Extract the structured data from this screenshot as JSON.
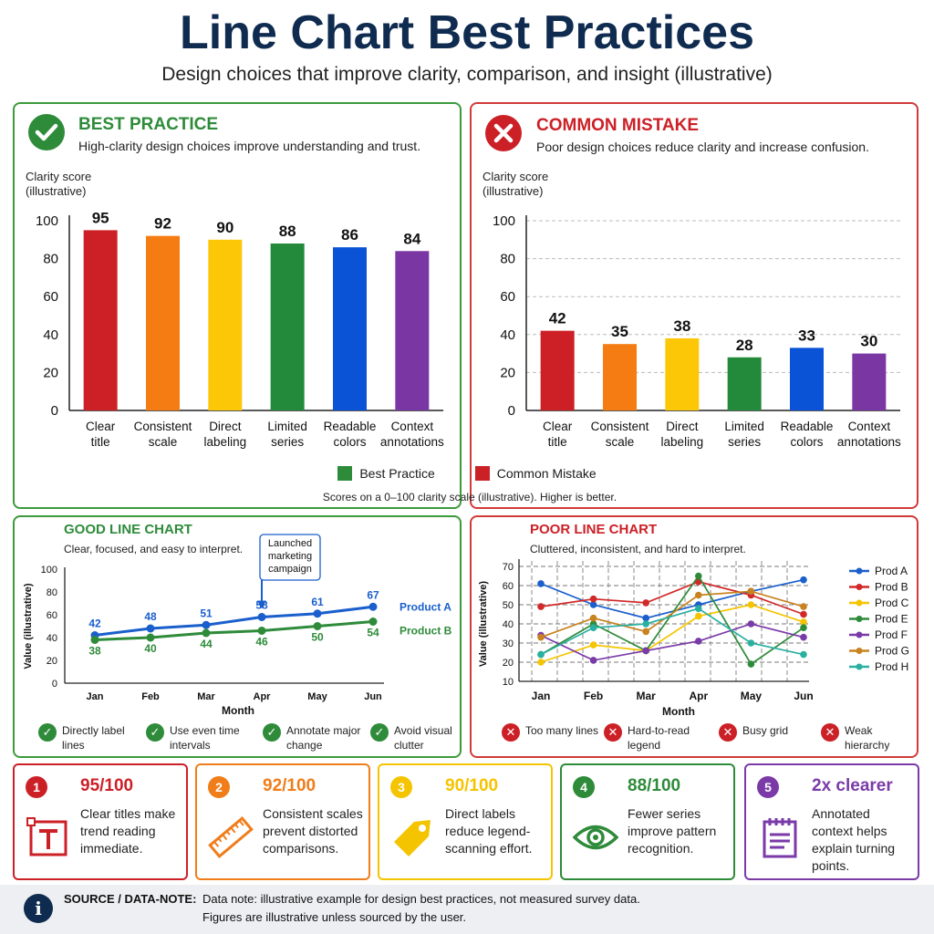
{
  "header": {
    "title": "Line Chart Best Practices",
    "subtitle": "Design choices that improve clarity, comparison, and insight (illustrative)"
  },
  "best_panel": {
    "title": "BEST PRACTICE",
    "subtitle": "High-clarity design choices improve understanding and trust."
  },
  "mistake_panel": {
    "title": "COMMON MISTAKE",
    "subtitle": "Poor design choices reduce clarity and increase confusion."
  },
  "bar_legend": {
    "best": "Best Practice",
    "mistake": "Common Mistake"
  },
  "bar_footnote": "Scores on a 0–100 clarity scale (illustrative). Higher is better.",
  "good_panel": {
    "title": "GOOD LINE CHART",
    "subtitle": "Clear, focused, and easy to interpret.",
    "tips": [
      "Directly label lines",
      "Use even time intervals",
      "Annotate major change",
      "Avoid visual clutter"
    ]
  },
  "poor_panel": {
    "title": "POOR LINE CHART",
    "subtitle": "Cluttered, inconsistent, and hard to interpret.",
    "tips": [
      "Too many lines",
      "Hard-to-read legend",
      "Busy grid",
      "Weak hierarchy"
    ]
  },
  "cards": [
    {
      "num": "1",
      "score": "95/100",
      "text": "Clear titles make trend reading immediate.",
      "color": "#cc2027",
      "icon": "title-icon"
    },
    {
      "num": "2",
      "score": "92/100",
      "text": "Consistent scales prevent distorted comparisons.",
      "color": "#f07d1a",
      "icon": "ruler-icon"
    },
    {
      "num": "3",
      "score": "90/100",
      "text": "Direct labels reduce legend-scanning effort.",
      "color": "#f5c400",
      "icon": "tag-icon"
    },
    {
      "num": "4",
      "score": "88/100",
      "text": "Fewer series improve pattern recognition.",
      "color": "#2e8b3a",
      "icon": "eye-icon"
    },
    {
      "num": "5",
      "score": "2x clearer",
      "text": "Annotated context helps explain turning points.",
      "color": "#7a3aa8",
      "icon": "notepad-icon"
    }
  ],
  "footer": {
    "label": "SOURCE / DATA-NOTE:",
    "note1": "Data note: illustrative example for design best practices, not measured survey data.",
    "note2": "Figures are illustrative unless sourced by the user."
  },
  "colors": {
    "navy": "#0f2b4f",
    "green_border": "#3c9a3c",
    "red_border": "#d23a3a",
    "best_title": "#2e8b3a",
    "mistake_title": "#cc2027",
    "bars": [
      "#cc1f26",
      "#f57c12",
      "#fcc707",
      "#238a3b",
      "#0a52d6",
      "#7a36a3"
    ]
  },
  "chart_data": [
    {
      "type": "bar",
      "ylabel": "Clarity score\n(illustrative)",
      "categories": [
        "Clear\ntitle",
        "Consistent\nscale",
        "Direct\nlabeling",
        "Limited\nseries",
        "Readable\ncolors",
        "Context\nannotations"
      ],
      "values": [
        95,
        92,
        90,
        88,
        86,
        84
      ],
      "ylim": [
        0,
        100
      ],
      "yticks": [
        0,
        20,
        40,
        60,
        80,
        100
      ],
      "grid": false
    },
    {
      "type": "bar",
      "ylabel": "Clarity score\n(illustrative)",
      "categories": [
        "Clear\ntitle",
        "Consistent\nscale",
        "Direct\nlabeling",
        "Limited\nseries",
        "Readable\ncolors",
        "Context\nannotations"
      ],
      "values": [
        42,
        35,
        38,
        28,
        33,
        30
      ],
      "ylim": [
        0,
        100
      ],
      "yticks": [
        0,
        20,
        40,
        60,
        80,
        100
      ],
      "grid": true
    },
    {
      "type": "line",
      "ylabel": "Value (illustrative)",
      "xlabel": "Month",
      "x": [
        "Jan",
        "Feb",
        "Mar",
        "Apr",
        "May",
        "Jun"
      ],
      "ylim": [
        0,
        100
      ],
      "yticks": [
        0,
        20,
        40,
        60,
        80,
        100
      ],
      "series": [
        {
          "name": "Product A",
          "values": [
            42,
            48,
            51,
            58,
            61,
            67
          ],
          "color": "#1a5fcc"
        },
        {
          "name": "Product B",
          "values": [
            38,
            40,
            44,
            46,
            50,
            54
          ],
          "color": "#2e8b3a"
        }
      ],
      "annotation": {
        "text": "Launched\nmarketing\ncampaign",
        "x": "Apr"
      }
    },
    {
      "type": "line",
      "ylabel": "Value (illustrative)",
      "xlabel": "Month",
      "x": [
        "Jan",
        "Feb",
        "Mar",
        "Apr",
        "May",
        "Jun"
      ],
      "ylim": [
        10,
        70
      ],
      "yticks": [
        10,
        20,
        30,
        40,
        50,
        60,
        70
      ],
      "legend": "right",
      "series": [
        {
          "name": "Prod A",
          "values": [
            61,
            50,
            43,
            50,
            57,
            63
          ],
          "color": "#1a5fcc"
        },
        {
          "name": "Prod B",
          "values": [
            49,
            53,
            51,
            62,
            55,
            45
          ],
          "color": "#d22828"
        },
        {
          "name": "Prod C",
          "values": [
            20,
            29,
            26,
            44,
            50,
            41
          ],
          "color": "#f5c400"
        },
        {
          "name": "Prod E",
          "values": [
            24,
            40,
            26,
            65,
            19,
            38
          ],
          "color": "#2e8b3a"
        },
        {
          "name": "Prod F",
          "values": [
            34,
            21,
            26,
            31,
            40,
            33
          ],
          "color": "#7a3aa8"
        },
        {
          "name": "Prod G",
          "values": [
            33,
            43,
            36,
            55,
            57,
            49
          ],
          "color": "#c8821e"
        },
        {
          "name": "Prod H",
          "values": [
            24,
            38,
            40,
            48,
            30,
            24
          ],
          "color": "#2ab0a0"
        }
      ]
    }
  ]
}
